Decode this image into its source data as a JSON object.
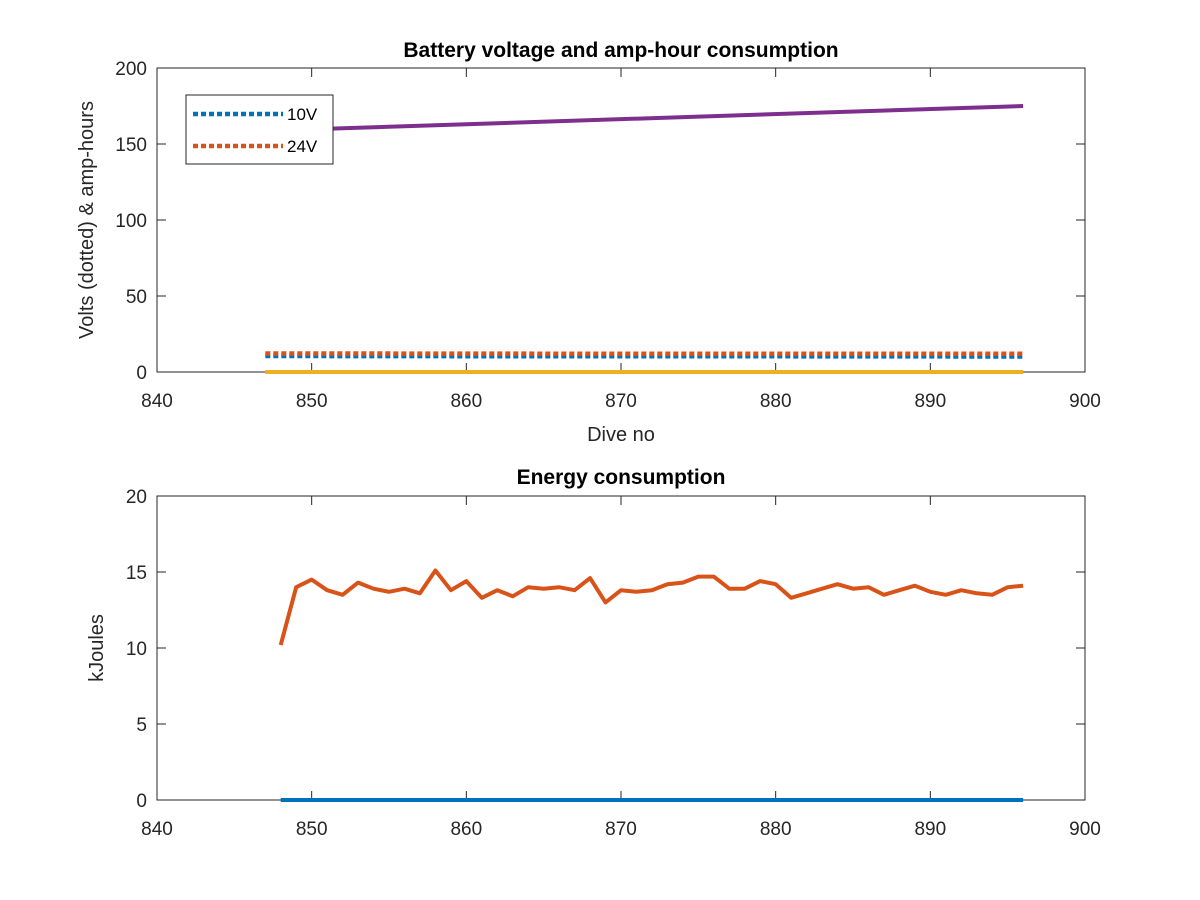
{
  "chart_data": [
    {
      "type": "line",
      "title": "Battery voltage and amp-hour consumption",
      "xlabel": "Dive no",
      "ylabel": "Volts (dotted) & amp-hours",
      "xlim": [
        840,
        900
      ],
      "ylim": [
        0,
        200
      ],
      "xticks": [
        840,
        850,
        860,
        870,
        880,
        890,
        900
      ],
      "yticks": [
        0,
        50,
        100,
        150,
        200
      ],
      "grid": false,
      "legend": {
        "placement": "top-left",
        "entries": [
          "10V",
          "24V"
        ]
      },
      "series": [
        {
          "name": "10V",
          "style": "dotted",
          "color": "#0072BD",
          "x": [
            847,
            860,
            870,
            880,
            896
          ],
          "y": [
            10.5,
            10.4,
            10.3,
            10.3,
            10.2
          ]
        },
        {
          "name": "24V",
          "style": "dotted",
          "color": "#D95319",
          "x": [
            847,
            860,
            870,
            880,
            896
          ],
          "y": [
            12.2,
            12.1,
            12.0,
            12.0,
            12.0
          ]
        },
        {
          "style": "solid",
          "color": "#EDB120",
          "x": [
            847,
            896
          ],
          "y": [
            0,
            0
          ]
        },
        {
          "style": "solid",
          "color": "#7E2F8E",
          "x": [
            851,
            896
          ],
          "y": [
            160,
            175
          ]
        }
      ]
    },
    {
      "type": "line",
      "title": "Energy consumption",
      "xlabel": "",
      "ylabel": "kJoules",
      "xlim": [
        840,
        900
      ],
      "ylim": [
        0,
        20
      ],
      "xticks": [
        840,
        850,
        860,
        870,
        880,
        890,
        900
      ],
      "yticks": [
        0,
        5,
        10,
        15,
        20
      ],
      "grid": false,
      "series": [
        {
          "style": "solid",
          "color": "#0072BD",
          "x": [
            848,
            896
          ],
          "y": [
            0,
            0
          ]
        },
        {
          "style": "solid",
          "color": "#D95319",
          "x": [
            848,
            849,
            850,
            851,
            852,
            853,
            854,
            855,
            856,
            857,
            858,
            859,
            860,
            861,
            862,
            863,
            864,
            865,
            866,
            867,
            868,
            869,
            870,
            871,
            872,
            873,
            874,
            875,
            876,
            877,
            878,
            879,
            880,
            881,
            882,
            883,
            884,
            885,
            886,
            887,
            888,
            889,
            890,
            891,
            892,
            893,
            894,
            895,
            896
          ],
          "y": [
            10.2,
            14.0,
            14.5,
            13.8,
            13.5,
            14.3,
            13.9,
            13.7,
            13.9,
            13.6,
            15.1,
            13.8,
            14.4,
            13.3,
            13.8,
            13.4,
            14.0,
            13.9,
            14.0,
            13.8,
            14.6,
            13.0,
            13.8,
            13.7,
            13.8,
            14.2,
            14.3,
            14.7,
            14.7,
            13.9,
            13.9,
            14.4,
            14.2,
            13.3,
            13.6,
            13.9,
            14.2,
            13.9,
            14.0,
            13.5,
            13.8,
            14.1,
            13.7,
            13.5,
            13.8,
            13.6,
            13.5,
            14.0,
            14.1
          ]
        }
      ]
    }
  ]
}
